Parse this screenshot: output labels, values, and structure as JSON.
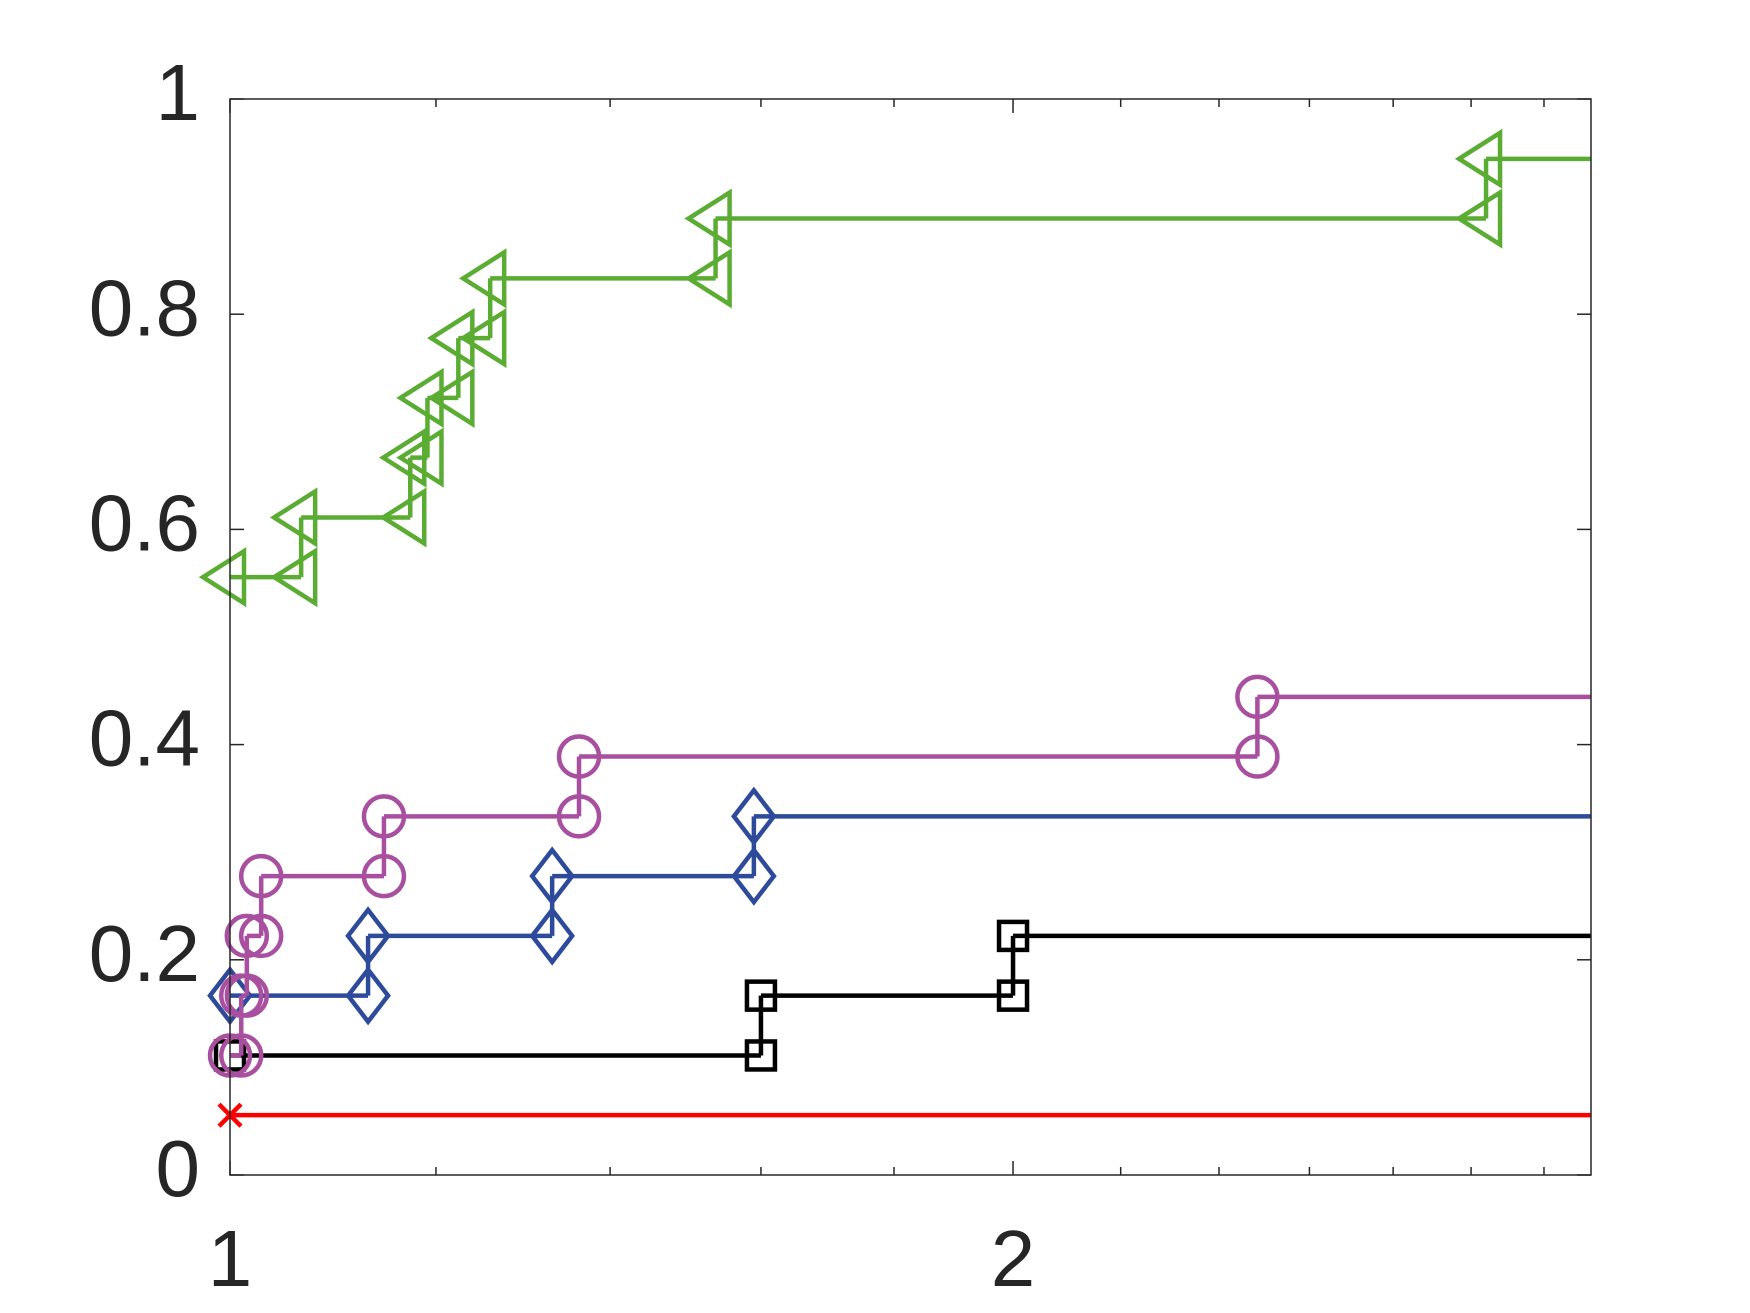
{
  "chart_data": {
    "type": "stairs",
    "xscale": "log",
    "xlim": [
      1,
      3.336
    ],
    "xticks": [
      1,
      2
    ],
    "xminorticks": [
      1.2,
      1.4,
      1.6,
      1.8,
      2.2,
      2.4,
      2.6,
      2.8,
      3,
      3.2
    ],
    "ylim": [
      0,
      1
    ],
    "yticks": [
      0,
      0.2,
      0.4,
      0.6,
      0.8,
      1
    ],
    "series": [
      {
        "color": "#ff0000",
        "marker": "x",
        "x": [
          1
        ],
        "values": [
          0.0556
        ]
      },
      {
        "color": "#000000",
        "marker": "square",
        "x": [
          1,
          1.6,
          2.0
        ],
        "values": [
          0.1111,
          0.1667,
          0.2222
        ]
      },
      {
        "color": "#2e4a9a",
        "marker": "diamond",
        "x": [
          1,
          1.13,
          1.33,
          1.59
        ],
        "values": [
          0.1667,
          0.2222,
          0.2778,
          0.3333
        ]
      },
      {
        "color": "#a94fa0",
        "marker": "circle",
        "x": [
          1,
          1.01,
          1.015,
          1.028,
          1.146,
          1.362,
          2.483
        ],
        "values": [
          0.1111,
          0.1667,
          0.2222,
          0.2778,
          0.3333,
          0.3889,
          0.4444
        ]
      },
      {
        "color": "#5aac33",
        "marker": "triangle-left",
        "x": [
          1,
          1.065,
          1.173,
          1.191,
          1.224,
          1.259,
          1.537,
          3.04
        ],
        "values": [
          0.5556,
          0.6111,
          0.6667,
          0.7222,
          0.7778,
          0.8333,
          0.8889,
          0.9444
        ]
      }
    ]
  }
}
